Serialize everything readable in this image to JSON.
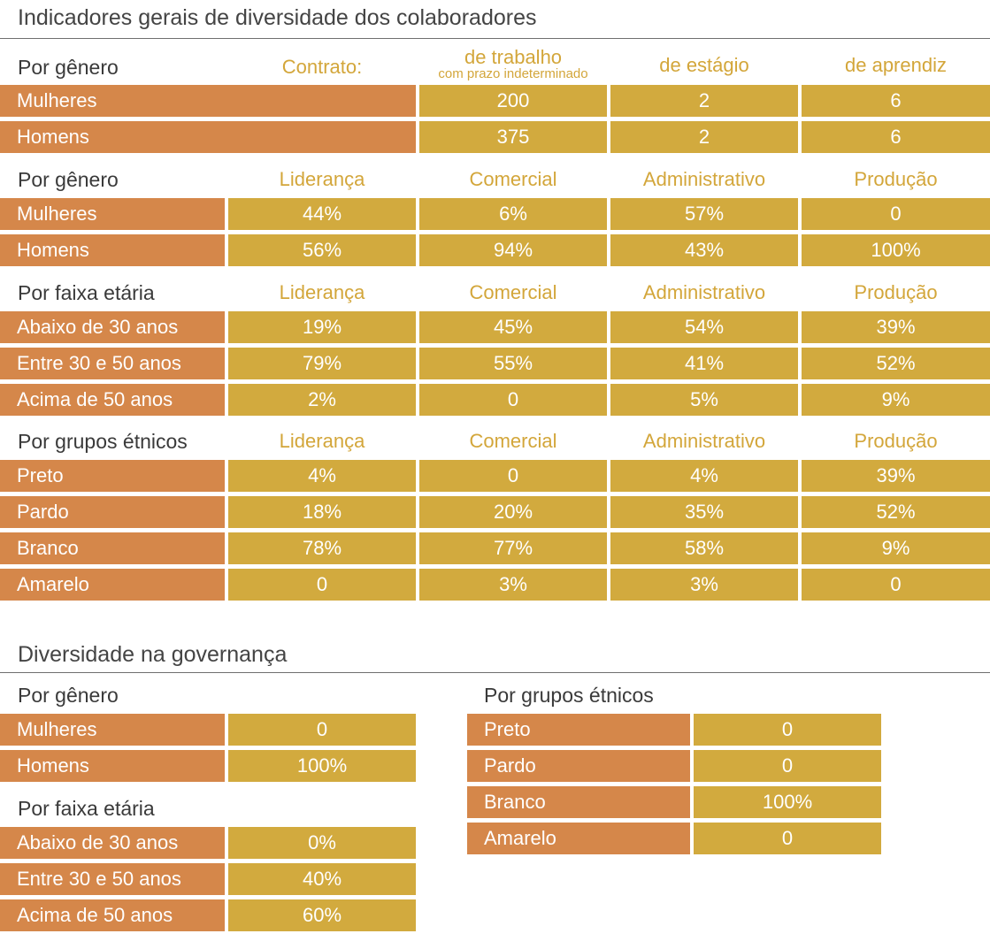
{
  "title_main": "Indicadores gerais de diversidade dos colaboradores",
  "contract": {
    "group_title": "Por gênero",
    "contract_label": "Contrato:",
    "col_trabalho": "de trabalho",
    "col_trabalho_sub": "com prazo indeterminado",
    "col_estagio": "de estágio",
    "col_aprendiz": "de aprendiz",
    "rows": [
      {
        "label": "Mulheres",
        "values": [
          "200",
          "2",
          "6"
        ]
      },
      {
        "label": "Homens",
        "values": [
          "375",
          "2",
          "6"
        ]
      }
    ]
  },
  "area_cols": [
    "Liderança",
    "Comercial",
    "Administrativo",
    "Produção"
  ],
  "gender": {
    "group_title": "Por gênero",
    "rows": [
      {
        "label": "Mulheres",
        "values": [
          "44%",
          "6%",
          "57%",
          "0"
        ]
      },
      {
        "label": "Homens",
        "values": [
          "56%",
          "94%",
          "43%",
          "100%"
        ]
      }
    ]
  },
  "age": {
    "group_title": "Por faixa etária",
    "rows": [
      {
        "label": "Abaixo de 30 anos",
        "values": [
          "19%",
          "45%",
          "54%",
          "39%"
        ]
      },
      {
        "label": "Entre 30 e 50 anos",
        "values": [
          "79%",
          "55%",
          "41%",
          "52%"
        ]
      },
      {
        "label": "Acima de 50 anos",
        "values": [
          "2%",
          "0",
          "5%",
          "9%"
        ]
      }
    ]
  },
  "ethnic": {
    "group_title": "Por grupos étnicos",
    "rows": [
      {
        "label": "Preto",
        "values": [
          "4%",
          "0",
          "4%",
          "39%"
        ]
      },
      {
        "label": "Pardo",
        "values": [
          "18%",
          "20%",
          "35%",
          "52%"
        ]
      },
      {
        "label": "Branco",
        "values": [
          "78%",
          "77%",
          "58%",
          "9%"
        ]
      },
      {
        "label": "Amarelo",
        "values": [
          "0",
          "3%",
          "3%",
          "0"
        ]
      }
    ]
  },
  "title_gov": "Diversidade na governança",
  "gov_gender": {
    "group_title": "Por gênero",
    "rows": [
      {
        "label": "Mulheres",
        "value": "0"
      },
      {
        "label": "Homens",
        "value": "100%"
      }
    ]
  },
  "gov_age": {
    "group_title": "Por faixa etária",
    "rows": [
      {
        "label": "Abaixo de 30 anos",
        "value": "0%"
      },
      {
        "label": "Entre 30 e 50 anos",
        "value": "40%"
      },
      {
        "label": "Acima de 50 anos",
        "value": "60%"
      }
    ]
  },
  "gov_ethnic": {
    "group_title": "Por grupos étnicos",
    "rows": [
      {
        "label": "Preto",
        "value": "0"
      },
      {
        "label": "Pardo",
        "value": "0"
      },
      {
        "label": "Branco",
        "value": "100%"
      },
      {
        "label": "Amarelo",
        "value": "0"
      }
    ]
  },
  "colors": {
    "label_bg": "#d5874a",
    "value_bg": "#d2aa3e",
    "header_text": "#d3a63a"
  }
}
